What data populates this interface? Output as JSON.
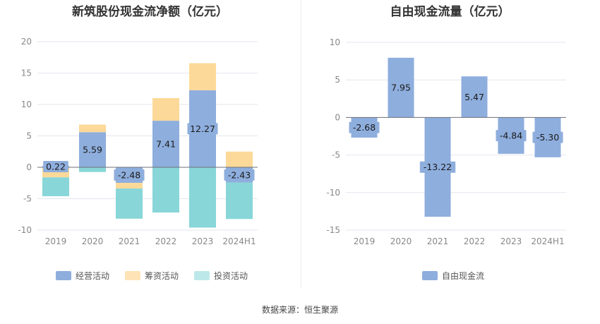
{
  "colors": {
    "operating": "#8eaedd",
    "financing": "#fcd998",
    "investing": "#88d6d8",
    "fcf": "#8eaedd",
    "grid": "#e3e6ee",
    "axis_text": "#888888",
    "label_bg": "#8eaedd"
  },
  "source": "数据来源：恒生聚源",
  "chart_data": [
    {
      "type": "bar",
      "stacked": true,
      "title": "新筑股份现金流净额（亿元）",
      "categories": [
        "2019",
        "2020",
        "2021",
        "2022",
        "2023",
        "2024H1"
      ],
      "ylim": [
        -10,
        20
      ],
      "yticks": [
        -10,
        -5,
        0,
        5,
        10,
        15,
        20
      ],
      "series": [
        {
          "name": "经营活动",
          "key": "operating",
          "values": [
            0.22,
            5.59,
            -2.48,
            7.41,
            12.27,
            -2.43
          ],
          "labels": [
            "0.22",
            "5.59",
            "-2.48",
            "7.41",
            "12.27",
            "-2.43"
          ]
        },
        {
          "name": "筹资活动",
          "key": "financing",
          "values": [
            -1.6,
            1.2,
            -0.9,
            3.6,
            4.3,
            2.5
          ]
        },
        {
          "name": "投资活动",
          "key": "investing",
          "values": [
            -3.0,
            -0.75,
            -4.8,
            -7.2,
            -9.6,
            -5.8
          ]
        }
      ],
      "legend": "bottom"
    },
    {
      "type": "bar",
      "title": "自由现金流量（亿元）",
      "categories": [
        "2019",
        "2020",
        "2021",
        "2022",
        "2023",
        "2024H1"
      ],
      "ylim": [
        -15,
        10
      ],
      "yticks": [
        -15,
        -10,
        -5,
        0,
        5,
        10
      ],
      "series": [
        {
          "name": "自由现金流",
          "key": "fcf",
          "values": [
            -2.68,
            7.95,
            -13.22,
            5.47,
            -4.84,
            -5.3
          ],
          "labels": [
            "-2.68",
            "7.95",
            "-13.22",
            "5.47",
            "-4.84",
            "-5.30"
          ]
        }
      ],
      "legend": "bottom"
    }
  ]
}
